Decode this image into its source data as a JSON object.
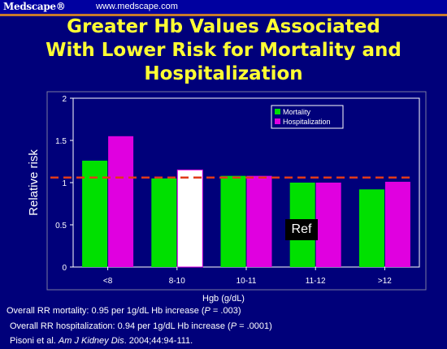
{
  "header": {
    "brand": "Medscape®",
    "url": "www.medscape.com"
  },
  "title_lines": [
    "Greater Hb Values Associated",
    "With Lower Risk for Mortality and",
    "Hospitalization"
  ],
  "chart_data": {
    "type": "bar",
    "categories": [
      "<8",
      "8-10",
      "10-11",
      "11-12",
      ">12"
    ],
    "series": [
      {
        "name": "Mortality",
        "values": [
          1.26,
          1.05,
          1.08,
          1.0,
          0.92
        ],
        "color": "#00e000"
      },
      {
        "name": "Hospitalization",
        "values": [
          1.55,
          1.15,
          1.08,
          1.0,
          1.01
        ],
        "color": "#e000e0"
      }
    ],
    "highlight": {
      "category": "8-10",
      "series": "Hospitalization",
      "fill": "#ffffff",
      "note": "white reference bar"
    },
    "reference_line": 1.06,
    "ylabel": "Relative risk",
    "xlabel": "Hgb (g/dL)",
    "ylim": [
      0,
      2
    ],
    "yticks": [
      "0",
      "0.5",
      "1",
      "1.5",
      "2"
    ],
    "legend_position": "top-right",
    "ref_label": "Ref",
    "colors": {
      "background": "#00007a",
      "plot_bg": "#00007a",
      "reference_line": "#e03a1a",
      "title": "#ffff33"
    }
  },
  "footnotes": {
    "line1_prefix": "Overall RR mortality: 0.95 per 1g/dL Hb increase (",
    "line1_p": "P",
    "line1_suffix": " = .003)",
    "line2_prefix": "Overall RR hospitalization: 0.94 per 1g/dL Hb increase (",
    "line2_p": "P",
    "line2_suffix": " = .0001)",
    "citation_prefix": "Pisoni et al. ",
    "citation_journal": "Am J Kidney Dis",
    "citation_suffix": ". 2004;44:94-111."
  }
}
